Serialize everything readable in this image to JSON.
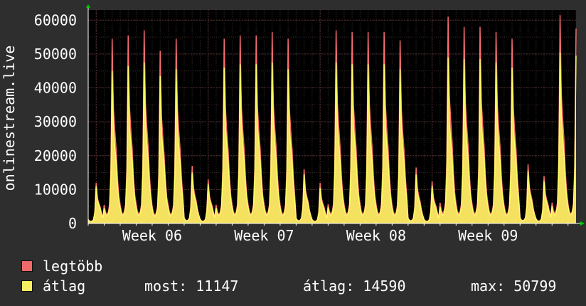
{
  "colors": {
    "background": "#2e2e2e",
    "plot_background": "#000000",
    "grid_minor": "#3a2a2a",
    "grid_major": "#5a3030",
    "axis": "#ffffff",
    "fill_max": "#f06a6a",
    "fill_avg": "#f8f060",
    "line_max": "#ff7070",
    "line_avg": "#ffff66",
    "arrow": "#00cc00"
  },
  "chart_data": {
    "type": "area",
    "ylabel": "onlinestream.live",
    "ylim": [
      0,
      63000
    ],
    "yticks": [
      "0",
      "10000",
      "20000",
      "30000",
      "40000",
      "50000",
      "60000"
    ],
    "ytick_values": [
      0,
      10000,
      20000,
      30000,
      40000,
      50000,
      60000
    ],
    "xticks": [
      "Week 06",
      "Week 07",
      "Week 08",
      "Week 09"
    ],
    "x_start_day": 0,
    "x_end_day": 30.5,
    "xtick_days": [
      4,
      11,
      18,
      25
    ],
    "grid": true,
    "series": [
      {
        "name": "legtöbb",
        "color": "#f06a6a",
        "daily_peaks": [
          12000,
          54500,
          55500,
          57000,
          51000,
          54500,
          17000,
          13000,
          54500,
          55500,
          55500,
          56500,
          54500,
          16000,
          12000,
          57000,
          56500,
          56500,
          56500,
          54000,
          16500,
          12500,
          61000,
          58000,
          58000,
          56500,
          54500,
          17500,
          14000,
          61500,
          57500
        ]
      },
      {
        "name": "átlag",
        "color": "#f8f060",
        "daily_peaks": [
          11000,
          45000,
          46500,
          47500,
          43500,
          45500,
          15000,
          11500,
          46000,
          47000,
          47000,
          47500,
          45500,
          14500,
          10500,
          47500,
          47000,
          47000,
          47000,
          45500,
          14500,
          11000,
          49000,
          48500,
          48500,
          47500,
          46000,
          15500,
          12500,
          50500,
          49500
        ]
      }
    ]
  },
  "legend": {
    "max_label": "legtöbb",
    "avg_label": "átlag",
    "now_text": "most: 11147",
    "avg_text": "átlag: 14590",
    "max_text": "max: 50799"
  }
}
